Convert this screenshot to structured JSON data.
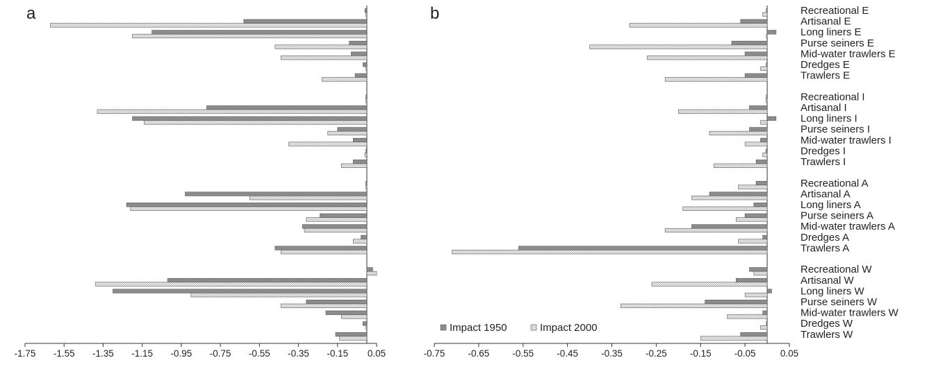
{
  "chart_data": [
    {
      "panel_label": "a",
      "type": "bar",
      "orientation": "horizontal",
      "x_ticks": [
        "-1.75",
        "-1.55",
        "-1.35",
        "-1.15",
        "-0.95",
        "-0.75",
        "-0.55",
        "-0.35",
        "-0.15",
        "0.05"
      ],
      "xlim": [
        -1.75,
        0.05
      ],
      "ylabels": [],
      "categories": [
        "Recreational E",
        "Artisanal E",
        "Long liners E",
        "Purse seiners E",
        "Mid-water trawlers E",
        "Dredges E",
        "Trawlers E",
        "Recreational I",
        "Artisanal I",
        "Long liners I",
        "Purse seiners I",
        "Mid-water trawlers I",
        "Dredges I",
        "Trawlers I",
        "Recreational A",
        "Artisanal A",
        "Long liners A",
        "Purse seiners A",
        "Mid-water trawlers A",
        "Dredges A",
        "Trawlers A",
        "Recreational W",
        "Artisanal W",
        "Long liners W",
        "Purse seiners W",
        "Mid-water trawlers W",
        "Dredges W",
        "Trawlers W"
      ],
      "series": [
        {
          "name": "Impact 1950",
          "values": [
            -0.01,
            -0.63,
            -1.1,
            -0.09,
            -0.08,
            -0.02,
            -0.06,
            -0.005,
            -0.82,
            -1.2,
            -0.15,
            -0.07,
            -0.005,
            -0.07,
            -0.005,
            -0.93,
            -1.23,
            -0.24,
            -0.33,
            -0.03,
            -0.47,
            0.03,
            -1.02,
            -1.3,
            -0.31,
            -0.21,
            -0.02,
            -0.16
          ]
        },
        {
          "name": "Impact 2000",
          "values": [
            -0.005,
            -1.62,
            -1.2,
            -0.47,
            -0.44,
            -0.005,
            -0.23,
            -0.005,
            -1.38,
            -1.14,
            -0.2,
            -0.4,
            -0.01,
            -0.13,
            -0.005,
            -0.6,
            -1.21,
            -0.31,
            -0.32,
            -0.07,
            -0.44,
            0.05,
            -1.39,
            -0.9,
            -0.44,
            -0.13,
            -0.005,
            -0.14
          ]
        }
      ]
    },
    {
      "panel_label": "b",
      "type": "bar",
      "orientation": "horizontal",
      "x_ticks": [
        "-0.75",
        "-0.65",
        "-0.55",
        "-0.45",
        "-0.35",
        "-0.25",
        "-0.15",
        "-0.05",
        "0.05"
      ],
      "xlim": [
        -0.75,
        0.05
      ],
      "categories": [
        "Recreational E",
        "Artisanal E",
        "Long liners E",
        "Purse seiners E",
        "Mid-water trawlers E",
        "Dredges E",
        "Trawlers E",
        "Recreational I",
        "Artisanal I",
        "Long liners I",
        "Purse seiners I",
        "Mid-water trawlers I",
        "Dredges I",
        "Trawlers I",
        "Recreational A",
        "Artisanal A",
        "Long liners A",
        "Purse seiners A",
        "Mid-water trawlers A",
        "Dredges A",
        "Trawlers A",
        "Recreational W",
        "Artisanal W",
        "Long liners W",
        "Purse seiners W",
        "Mid-water trawlers W",
        "Dredges W",
        "Trawlers W"
      ],
      "series": [
        {
          "name": "Impact 1950",
          "values": [
            -0.002,
            -0.06,
            0.02,
            -0.08,
            -0.05,
            -0.002,
            -0.05,
            -0.002,
            -0.04,
            0.02,
            -0.04,
            -0.015,
            -0.003,
            -0.025,
            -0.025,
            -0.13,
            -0.03,
            -0.05,
            -0.17,
            -0.01,
            -0.56,
            -0.04,
            -0.07,
            0.01,
            -0.14,
            -0.01,
            -0.002,
            -0.06
          ]
        },
        {
          "name": "Impact 2000",
          "values": [
            -0.01,
            -0.31,
            -0.002,
            -0.4,
            -0.27,
            -0.015,
            -0.23,
            -0.003,
            -0.2,
            -0.015,
            -0.13,
            -0.05,
            -0.01,
            -0.12,
            -0.065,
            -0.17,
            -0.19,
            -0.07,
            -0.23,
            -0.065,
            -0.71,
            -0.03,
            -0.26,
            -0.05,
            -0.33,
            -0.09,
            -0.015,
            -0.15
          ]
        }
      ],
      "legend": {
        "position": "bottom-left",
        "items": [
          "Impact 1950",
          "Impact 2000"
        ]
      }
    }
  ],
  "colors": {
    "impact_1950": "#8c8c8c",
    "impact_2000": "#e6e6e6",
    "outline": "#555555"
  }
}
